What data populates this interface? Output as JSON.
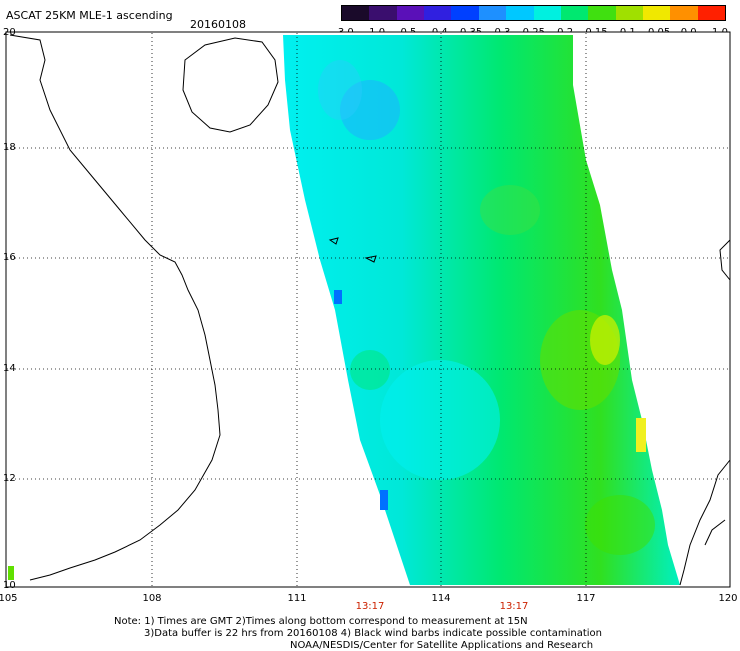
{
  "header": {
    "product": "ASCAT 25KM MLE-1 ascending",
    "date": "20160108"
  },
  "colorbar": {
    "labels": [
      "-3.0",
      "-1.0",
      "-0.5",
      "-0.4",
      "-0.35",
      "-0.3",
      "-0.25",
      "-0.2",
      "-0.15",
      "-0.1",
      "-0.05",
      "0.0",
      "1.0"
    ],
    "colors": [
      "#1a0a2a",
      "#3a0e6e",
      "#5a10b8",
      "#3020e0",
      "#0040ff",
      "#1e90ff",
      "#00c8ff",
      "#00f0e0",
      "#00e870",
      "#40e010",
      "#a0e000",
      "#f0e800",
      "#ff9000",
      "#ff2000"
    ]
  },
  "axes": {
    "lat_labels": [
      "20",
      "18",
      "16",
      "14",
      "12",
      "10"
    ],
    "lon_labels": [
      "105",
      "108",
      "111",
      "114",
      "117",
      "120"
    ],
    "times": [
      "13:17",
      "13:17"
    ]
  },
  "notes": {
    "line1": "Note: 1) Times are GMT 2)Times along bottom correspond to measurement at 15N",
    "line2": "3)Data buffer is 22 hrs from 20160108 4) Black wind barbs indicate possible contamination",
    "line3": "NOAA/NESDIS/Center for Satellite Applications and Research"
  }
}
